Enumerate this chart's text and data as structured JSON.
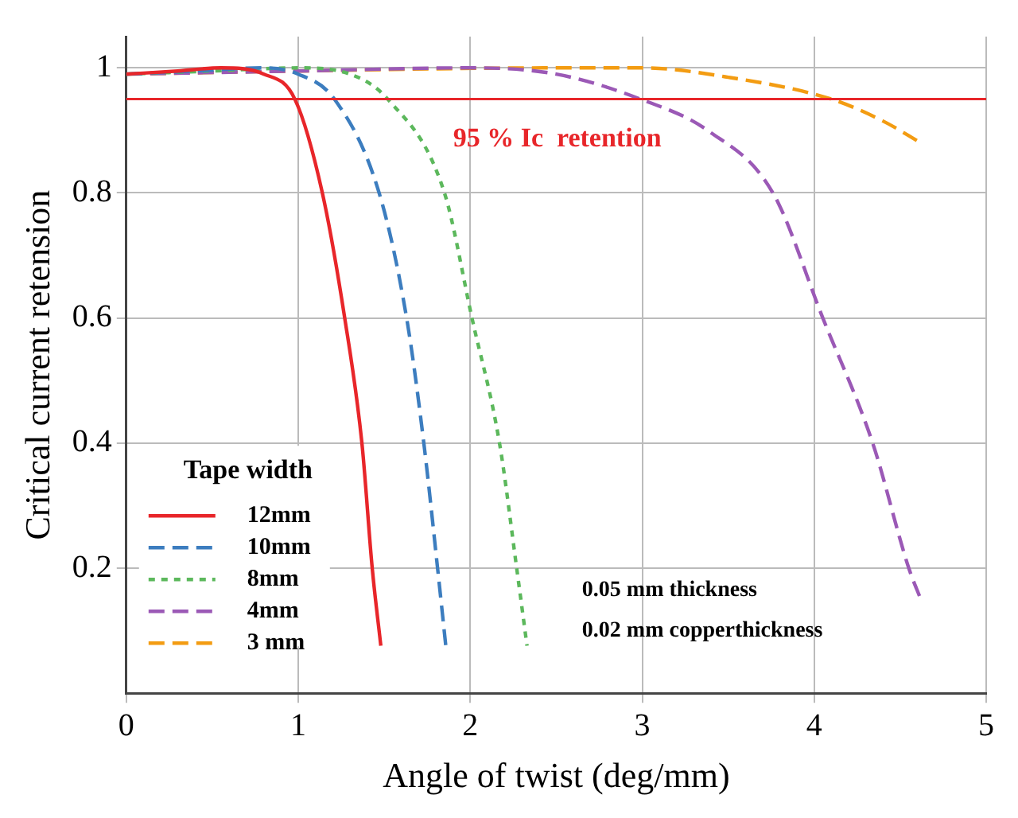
{
  "chart_data": {
    "type": "line",
    "xlabel": "Angle of twist (deg/mm)",
    "ylabel": "Critical current retension",
    "legend_title": "Tape width",
    "legend": "bottom left",
    "grid": true,
    "marker": "none",
    "xlim": [
      0,
      5
    ],
    "xticks": [
      0,
      1,
      2,
      3,
      4,
      5
    ],
    "ylim": [
      0,
      1.05
    ],
    "yticks": [
      0.2,
      0.4,
      0.6,
      0.8,
      1
    ],
    "series": [
      {
        "name": "12mm",
        "color": "#e8262a",
        "line_style": "solid",
        "x": [
          0,
          0.3,
          0.55,
          0.8,
          0.98,
          1.14,
          1.27,
          1.37,
          1.43,
          1.48
        ],
        "values": [
          0.99,
          0.995,
          1.0,
          0.99,
          0.95,
          0.8,
          0.6,
          0.4,
          0.2,
          0.076
        ]
      },
      {
        "name": "10mm",
        "color": "#3c7dbf",
        "line_style": "dashed",
        "x": [
          0,
          0.4,
          0.8,
          1.0,
          1.21,
          1.47,
          1.63,
          1.73,
          1.81,
          1.86
        ],
        "values": [
          0.99,
          0.995,
          1.0,
          0.99,
          0.95,
          0.8,
          0.6,
          0.4,
          0.2,
          0.07
        ]
      },
      {
        "name": "8mm",
        "color": "#5cb85c",
        "line_style": "dotted",
        "x": [
          0,
          0.5,
          1.0,
          1.3,
          1.52,
          1.85,
          2.01,
          2.17,
          2.27,
          2.33
        ],
        "values": [
          0.99,
          0.995,
          1.0,
          0.99,
          0.95,
          0.8,
          0.6,
          0.4,
          0.2,
          0.076
        ]
      },
      {
        "name": "4mm",
        "color": "#9b59b6",
        "line_style": "dashed",
        "x": [
          0,
          1.0,
          2.0,
          2.5,
          2.99,
          3.38,
          3.76,
          4.05,
          4.34,
          4.55,
          4.62
        ],
        "values": [
          0.99,
          0.995,
          1.0,
          0.99,
          0.95,
          0.9,
          0.8,
          0.6,
          0.4,
          0.2,
          0.15
        ]
      },
      {
        "name": "3 mm",
        "color": "#f39c12",
        "line_style": "dashed",
        "x": [
          0,
          1.0,
          2.5,
          3.0,
          3.5,
          4.1,
          4.4,
          4.62
        ],
        "values": [
          0.99,
          0.995,
          1.0,
          1.0,
          0.985,
          0.95,
          0.915,
          0.88
        ]
      }
    ],
    "ref_lines": [
      {
        "axis": "y",
        "value": 0.95,
        "label": "95 % Ic  retention",
        "color": "#e8262a"
      }
    ],
    "annotations": [
      "0.05 mm thickness",
      "0.02 mm copperthickness"
    ]
  }
}
